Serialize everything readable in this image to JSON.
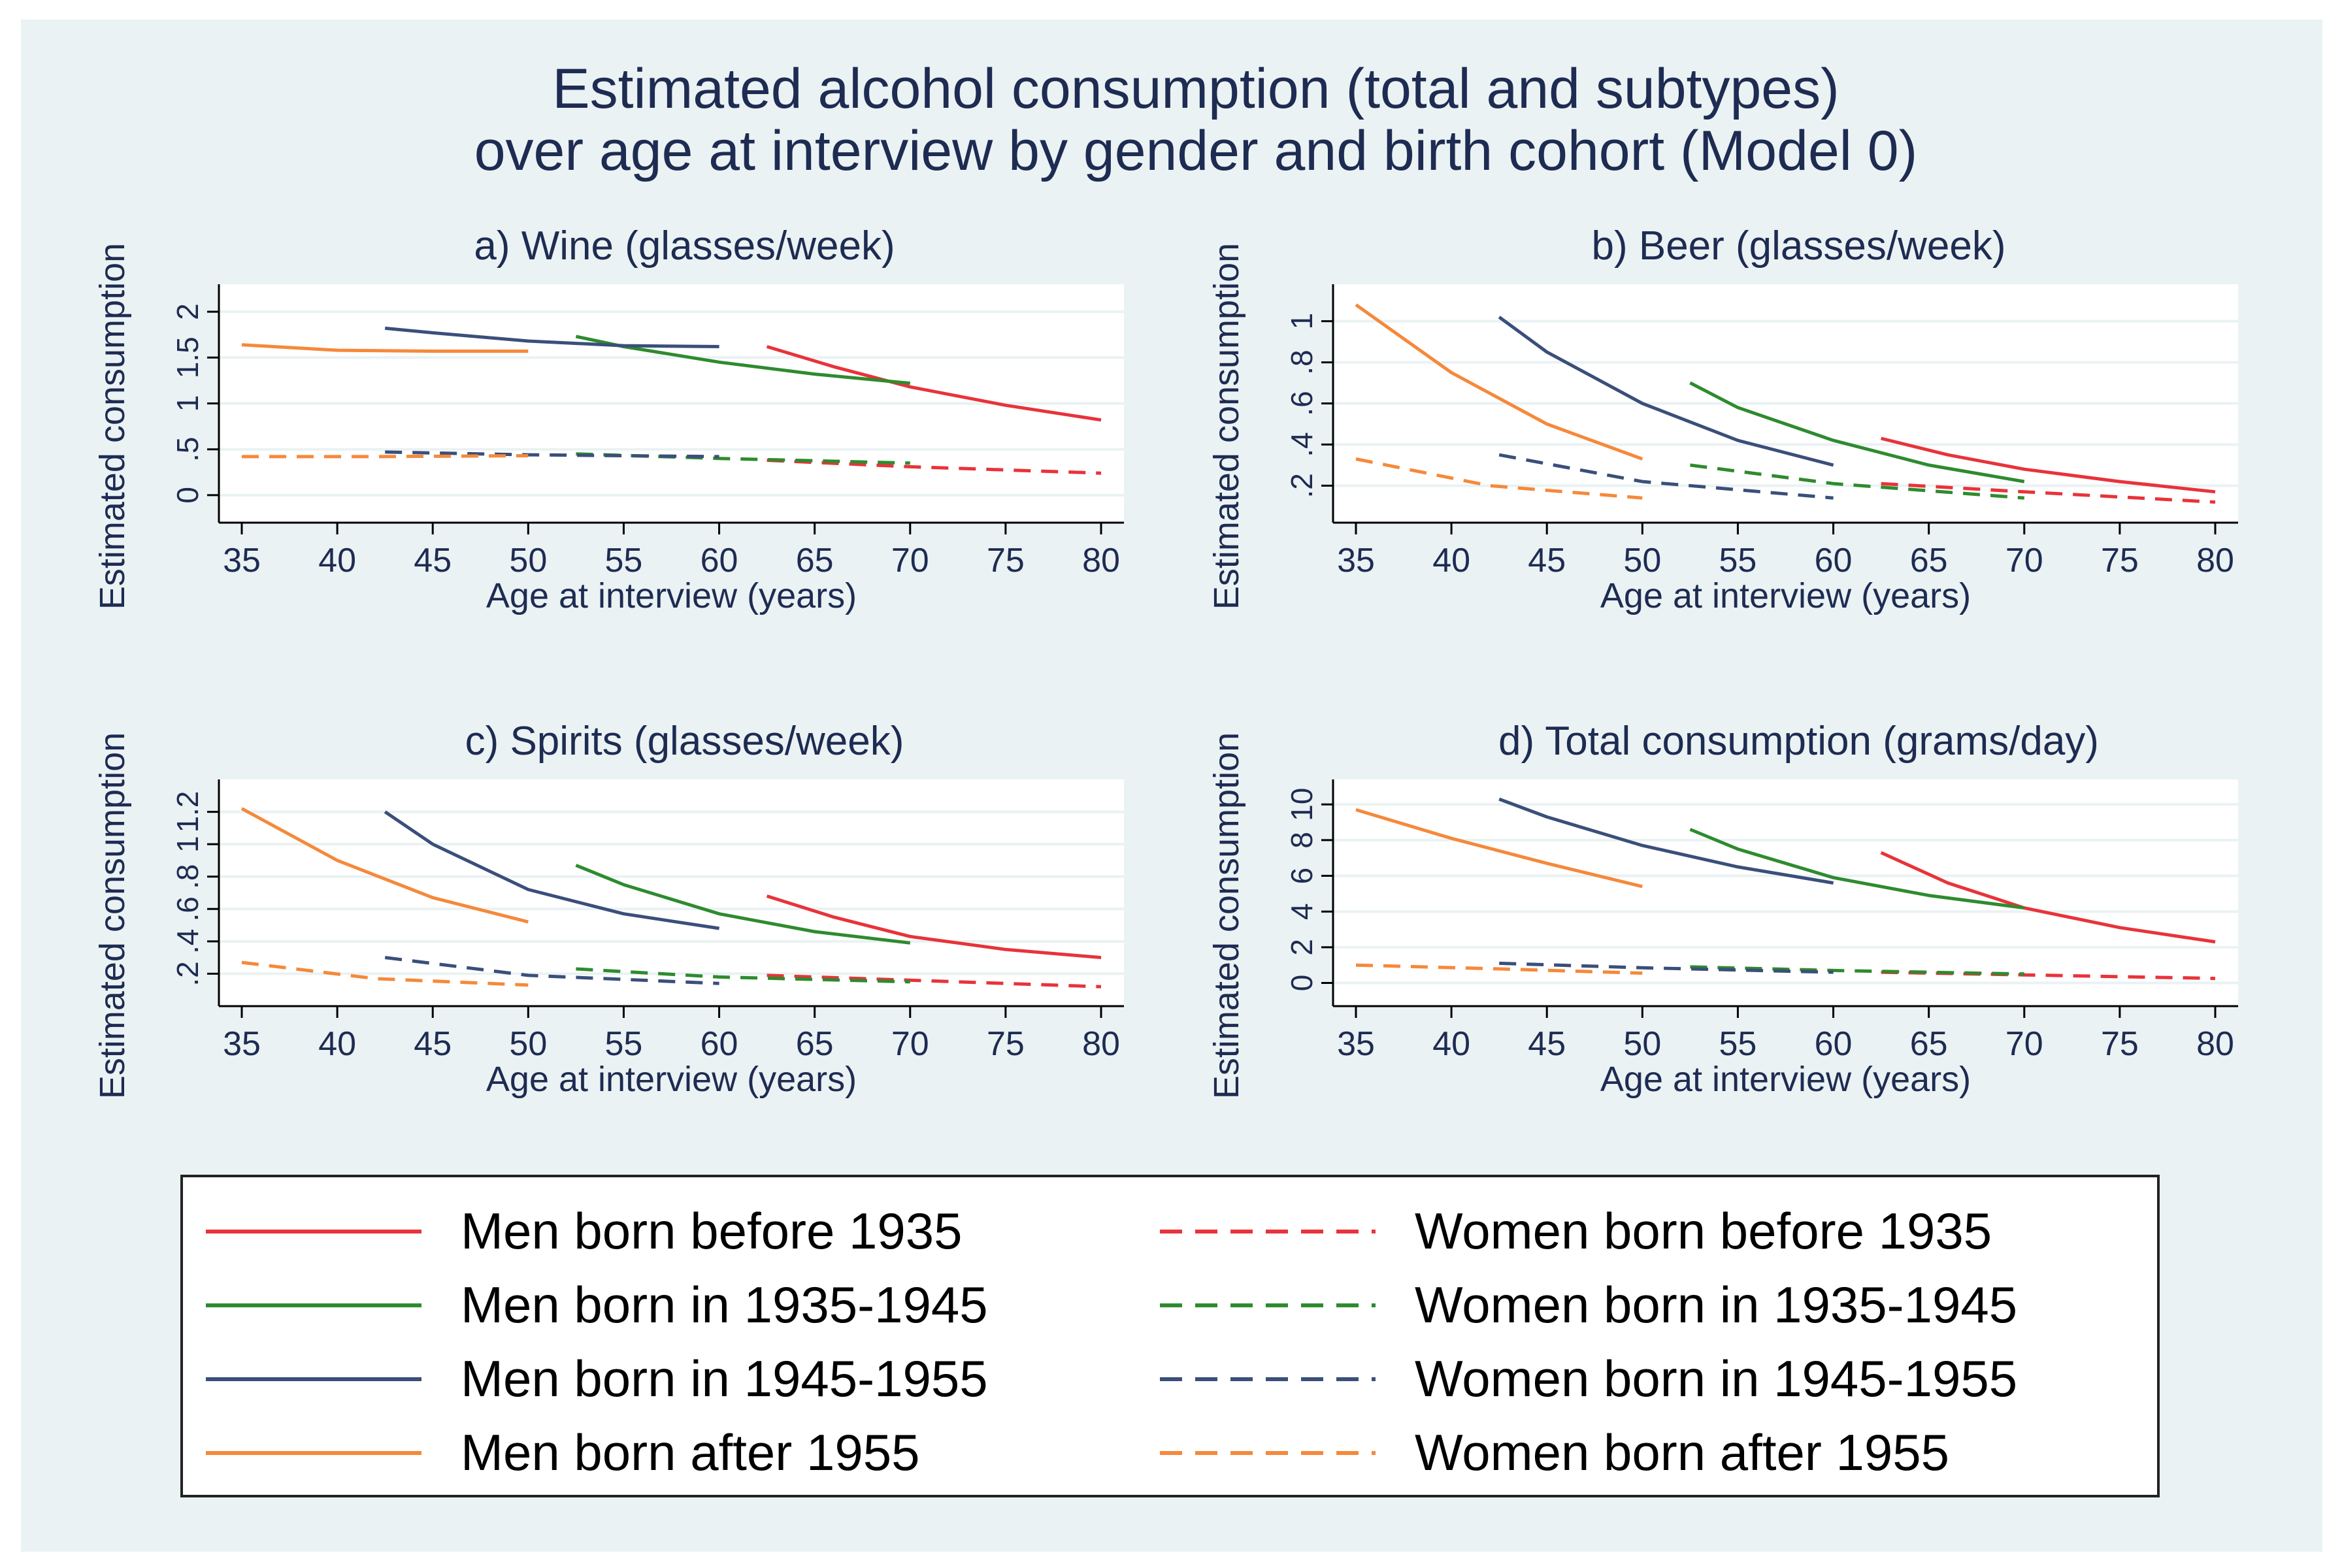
{
  "figure": {
    "title_line1": "Estimated alcohol consumption (total and subtypes)",
    "title_line2": "over age at interview by gender and birth cohort (Model 0)",
    "background": "#eaf2f3",
    "plot_background": "#ffffff",
    "text_color": "#1e2b52",
    "gridline_color": "#eaf2f3"
  },
  "series_styles": [
    {
      "key": "men_pre1935",
      "color": "#e8333a",
      "dashed": false
    },
    {
      "key": "men_3545",
      "color": "#2e8b2e",
      "dashed": false
    },
    {
      "key": "men_4555",
      "color": "#3a4f7a",
      "dashed": false
    },
    {
      "key": "men_post1955",
      "color": "#f5893a",
      "dashed": false
    },
    {
      "key": "women_pre1935",
      "color": "#e8333a",
      "dashed": true
    },
    {
      "key": "women_3545",
      "color": "#2e8b2e",
      "dashed": true
    },
    {
      "key": "women_4555",
      "color": "#3a4f7a",
      "dashed": true
    },
    {
      "key": "women_post1955",
      "color": "#f5893a",
      "dashed": true
    }
  ],
  "legend": {
    "entries": [
      {
        "key": "men_pre1935",
        "label": "Men born before 1935"
      },
      {
        "key": "women_pre1935",
        "label": "Women born before 1935"
      },
      {
        "key": "men_3545",
        "label": "Men born in 1935-1945"
      },
      {
        "key": "women_3545",
        "label": "Women born in 1935-1945"
      },
      {
        "key": "men_4555",
        "label": "Men born in 1945-1955"
      },
      {
        "key": "women_4555",
        "label": "Women born in 1945-1955"
      },
      {
        "key": "men_post1955",
        "label": "Men born after 1955"
      },
      {
        "key": "women_post1955",
        "label": "Women born after 1955"
      }
    ]
  },
  "chart_data": [
    {
      "type": "line",
      "title": "a) Wine (glasses/week)",
      "xlabel": "Age at interview (years)",
      "ylabel": "Estimated consumption",
      "xlim": [
        35,
        80
      ],
      "ylim": [
        -0.3,
        2.3
      ],
      "xticks": [
        "35",
        "40",
        "45",
        "50",
        "55",
        "60",
        "65",
        "70",
        "75",
        "80"
      ],
      "yticks": [
        {
          "value": 0,
          "label": "0"
        },
        {
          "value": 0.5,
          "label": ".5"
        },
        {
          "value": 1,
          "label": "1"
        },
        {
          "value": 1.5,
          "label": "1.5"
        },
        {
          "value": 2,
          "label": "2"
        }
      ],
      "series": [
        {
          "key": "men_pre1935",
          "x": [
            62.5,
            66,
            70,
            75,
            80
          ],
          "y": [
            1.62,
            1.4,
            1.18,
            0.98,
            0.82
          ]
        },
        {
          "key": "men_3545",
          "x": [
            52.5,
            55,
            60,
            65,
            70
          ],
          "y": [
            1.73,
            1.62,
            1.45,
            1.32,
            1.22
          ]
        },
        {
          "key": "men_4555",
          "x": [
            42.5,
            45,
            50,
            55,
            60
          ],
          "y": [
            1.82,
            1.77,
            1.68,
            1.63,
            1.62
          ]
        },
        {
          "key": "men_post1955",
          "x": [
            35,
            40,
            45,
            50
          ],
          "y": [
            1.64,
            1.58,
            1.57,
            1.57
          ]
        },
        {
          "key": "women_pre1935",
          "x": [
            62.5,
            70,
            80
          ],
          "y": [
            0.38,
            0.31,
            0.24
          ]
        },
        {
          "key": "women_3545",
          "x": [
            52.5,
            60,
            70
          ],
          "y": [
            0.45,
            0.4,
            0.35
          ]
        },
        {
          "key": "women_4555",
          "x": [
            42.5,
            50,
            60
          ],
          "y": [
            0.47,
            0.44,
            0.42
          ]
        },
        {
          "key": "women_post1955",
          "x": [
            35,
            42,
            50
          ],
          "y": [
            0.42,
            0.42,
            0.43
          ]
        }
      ]
    },
    {
      "type": "line",
      "title": "b) Beer (glasses/week)",
      "xlabel": "Age at interview (years)",
      "ylabel": "Estimated consumption",
      "xlim": [
        35,
        80
      ],
      "ylim": [
        0.02,
        1.18
      ],
      "xticks": [
        "35",
        "40",
        "45",
        "50",
        "55",
        "60",
        "65",
        "70",
        "75",
        "80"
      ],
      "yticks": [
        {
          "value": 0.2,
          "label": ".2"
        },
        {
          "value": 0.4,
          "label": ".4"
        },
        {
          "value": 0.6,
          "label": ".6"
        },
        {
          "value": 0.8,
          "label": ".8"
        },
        {
          "value": 1,
          "label": "1"
        }
      ],
      "series": [
        {
          "key": "men_pre1935",
          "x": [
            62.5,
            66,
            70,
            75,
            80
          ],
          "y": [
            0.43,
            0.35,
            0.28,
            0.22,
            0.17
          ]
        },
        {
          "key": "men_3545",
          "x": [
            52.5,
            55,
            60,
            65,
            70
          ],
          "y": [
            0.7,
            0.58,
            0.42,
            0.3,
            0.22
          ]
        },
        {
          "key": "men_4555",
          "x": [
            42.5,
            45,
            50,
            55,
            60
          ],
          "y": [
            1.02,
            0.85,
            0.6,
            0.42,
            0.3
          ]
        },
        {
          "key": "men_post1955",
          "x": [
            35,
            40,
            45,
            50
          ],
          "y": [
            1.08,
            0.75,
            0.5,
            0.33
          ]
        },
        {
          "key": "women_pre1935",
          "x": [
            62.5,
            70,
            80
          ],
          "y": [
            0.21,
            0.17,
            0.12
          ]
        },
        {
          "key": "women_3545",
          "x": [
            52.5,
            60,
            70
          ],
          "y": [
            0.3,
            0.21,
            0.14
          ]
        },
        {
          "key": "women_4555",
          "x": [
            42.5,
            50,
            60
          ],
          "y": [
            0.35,
            0.22,
            0.14
          ]
        },
        {
          "key": "women_post1955",
          "x": [
            35,
            42,
            50
          ],
          "y": [
            0.33,
            0.2,
            0.14
          ]
        }
      ]
    },
    {
      "type": "line",
      "title": "c) Spirits (glasses/week)",
      "xlabel": "Age at interview (years)",
      "ylabel": "Estimated consumption",
      "xlim": [
        35,
        80
      ],
      "ylim": [
        0.0,
        1.4
      ],
      "xticks": [
        "35",
        "40",
        "45",
        "50",
        "55",
        "60",
        "65",
        "70",
        "75",
        "80"
      ],
      "yticks": [
        {
          "value": 0.2,
          "label": ".2"
        },
        {
          "value": 0.4,
          "label": ".4"
        },
        {
          "value": 0.6,
          "label": ".6"
        },
        {
          "value": 0.8,
          "label": ".8"
        },
        {
          "value": 1,
          "label": "1"
        },
        {
          "value": 1.2,
          "label": "1.2"
        }
      ],
      "series": [
        {
          "key": "men_pre1935",
          "x": [
            62.5,
            66,
            70,
            75,
            80
          ],
          "y": [
            0.68,
            0.55,
            0.43,
            0.35,
            0.3
          ]
        },
        {
          "key": "men_3545",
          "x": [
            52.5,
            55,
            60,
            65,
            70
          ],
          "y": [
            0.87,
            0.75,
            0.57,
            0.46,
            0.39
          ]
        },
        {
          "key": "men_4555",
          "x": [
            42.5,
            45,
            50,
            55,
            60
          ],
          "y": [
            1.2,
            1.0,
            0.72,
            0.57,
            0.48
          ]
        },
        {
          "key": "men_post1955",
          "x": [
            35,
            40,
            45,
            50
          ],
          "y": [
            1.22,
            0.9,
            0.67,
            0.52
          ]
        },
        {
          "key": "women_pre1935",
          "x": [
            62.5,
            70,
            80
          ],
          "y": [
            0.19,
            0.16,
            0.12
          ]
        },
        {
          "key": "women_3545",
          "x": [
            52.5,
            60,
            70
          ],
          "y": [
            0.23,
            0.18,
            0.15
          ]
        },
        {
          "key": "women_4555",
          "x": [
            42.5,
            50,
            60
          ],
          "y": [
            0.3,
            0.19,
            0.14
          ]
        },
        {
          "key": "women_post1955",
          "x": [
            35,
            42,
            50
          ],
          "y": [
            0.27,
            0.17,
            0.13
          ]
        }
      ]
    },
    {
      "type": "line",
      "title": "d) Total consumption (grams/day)",
      "xlabel": "Age at interview (years)",
      "ylabel": "Estimated consumption",
      "xlim": [
        35,
        80
      ],
      "ylim": [
        -1.3,
        11.4
      ],
      "xticks": [
        "35",
        "40",
        "45",
        "50",
        "55",
        "60",
        "65",
        "70",
        "75",
        "80"
      ],
      "yticks": [
        {
          "value": 0,
          "label": "0"
        },
        {
          "value": 2,
          "label": "2"
        },
        {
          "value": 4,
          "label": "4"
        },
        {
          "value": 6,
          "label": "6"
        },
        {
          "value": 8,
          "label": "8"
        },
        {
          "value": 10,
          "label": "10"
        }
      ],
      "series": [
        {
          "key": "men_pre1935",
          "x": [
            62.5,
            66,
            70,
            75,
            80
          ],
          "y": [
            7.3,
            5.6,
            4.2,
            3.1,
            2.3
          ]
        },
        {
          "key": "men_3545",
          "x": [
            52.5,
            55,
            60,
            65,
            70
          ],
          "y": [
            8.6,
            7.5,
            5.9,
            4.9,
            4.2
          ]
        },
        {
          "key": "men_4555",
          "x": [
            42.5,
            45,
            50,
            55,
            60
          ],
          "y": [
            10.3,
            9.3,
            7.7,
            6.5,
            5.6
          ]
        },
        {
          "key": "men_post1955",
          "x": [
            35,
            40,
            45,
            50
          ],
          "y": [
            9.7,
            8.1,
            6.7,
            5.4
          ]
        },
        {
          "key": "women_pre1935",
          "x": [
            62.5,
            70,
            80
          ],
          "y": [
            0.6,
            0.45,
            0.25
          ]
        },
        {
          "key": "women_3545",
          "x": [
            52.5,
            60,
            70
          ],
          "y": [
            0.9,
            0.7,
            0.5
          ]
        },
        {
          "key": "women_4555",
          "x": [
            42.5,
            50,
            60
          ],
          "y": [
            1.1,
            0.85,
            0.6
          ]
        },
        {
          "key": "women_post1955",
          "x": [
            35,
            42,
            50
          ],
          "y": [
            1.0,
            0.8,
            0.55
          ]
        }
      ]
    }
  ]
}
